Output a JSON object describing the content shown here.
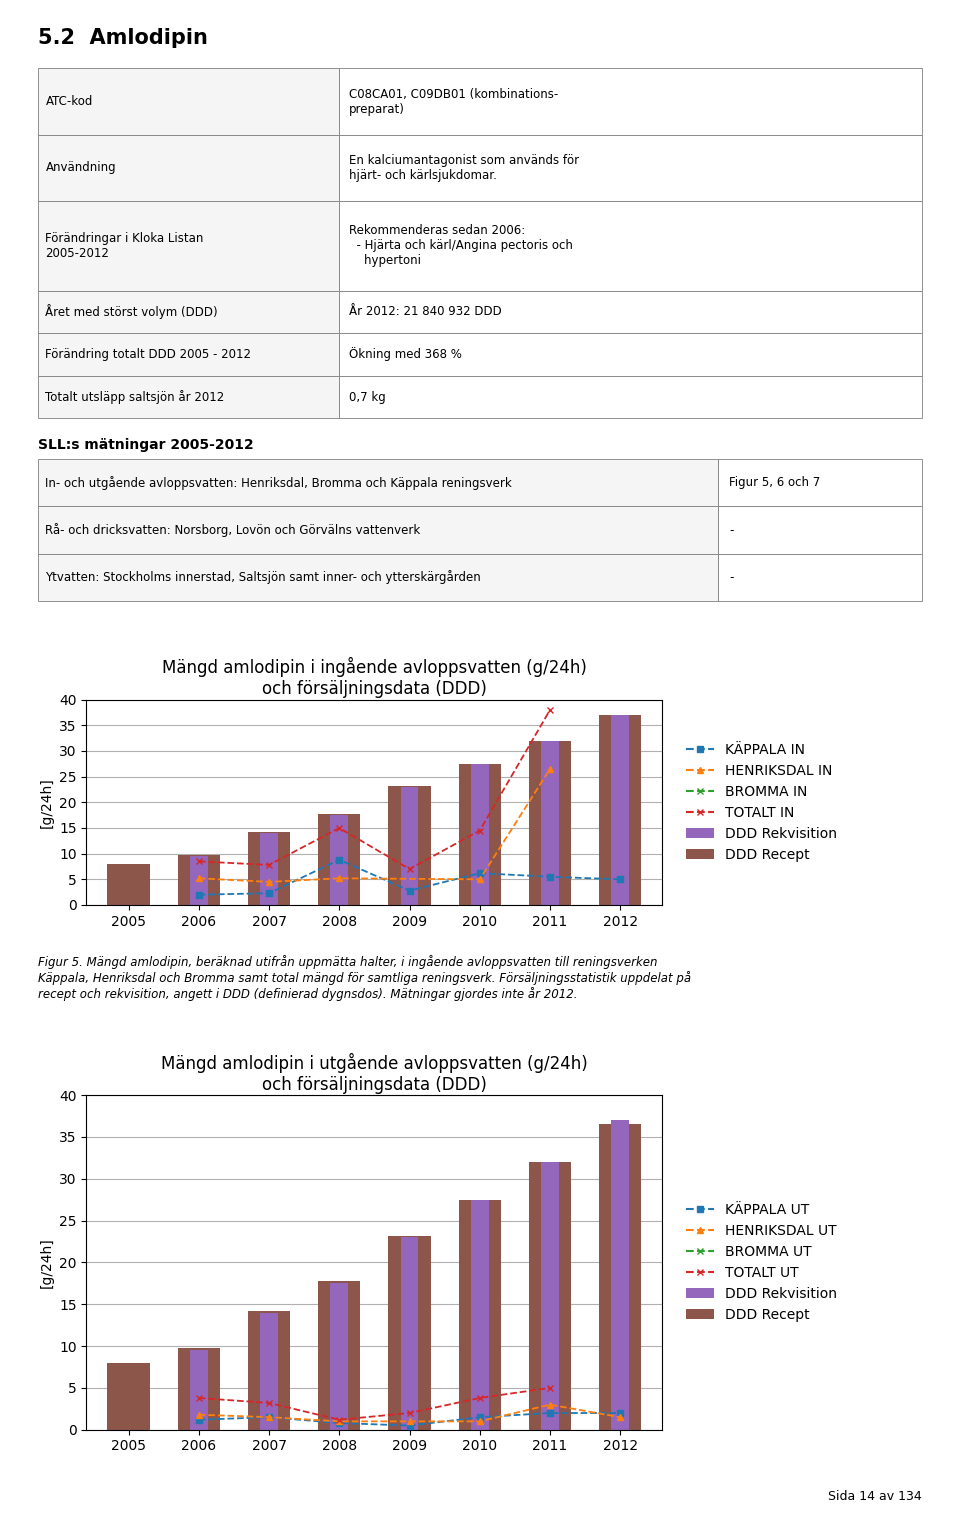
{
  "title": "5.2  Amlodipin",
  "tables": [
    {
      "rows": [
        [
          "ATC-kod",
          "C08CA01, C09DB01 (kombinations-\npreparat)"
        ],
        [
          "Användning",
          "En kalciumantagonist som används för\nhjärt- och kärlsjukdomar."
        ],
        [
          "Förändringar i Kloka Listan\n2005-2012",
          "Rekommenderas sedan 2006:\n  - Hjärta och kärl/Angina pectoris och\n    hypertoni"
        ],
        [
          "Året med störst volym (DDD)",
          "År 2012: 21 840 932 DDD"
        ],
        [
          "Förändring totalt DDD 2005 - 2012",
          "Ökning med 368 %"
        ],
        [
          "Totalt utsläpp saltsjön år 2012",
          "0,7 kg"
        ]
      ]
    },
    {
      "title": "SLL:s mätningar 2005-2012",
      "rows": [
        [
          "In- och utgående avloppsvatten: Henriksdal, Bromma och Käppala reningsverk",
          "Figur 5, 6 och 7"
        ],
        [
          "Rå- och dricksvatten: Norsborg, Lovön och Görvälns vattenverk",
          "-"
        ],
        [
          "Ytvatten: Stockholms innerstad, Saltsjön samt inner- och ytterskärgården",
          "-"
        ]
      ]
    }
  ],
  "annotations": [
    "Figur 5. Mängd amlodipin, beräknad utifrån uppmätta halter, i ingående avloppsvatten till reningsverken\nKäppala, Henriksdal och Bromma samt total mängd för samtliga reningsverk. Försäljningsstatistik uppdelat på\nrecept och rekvisition, angett i DDD (definierad dygnsdos). Mätningar gjordes inte år 2012.",
    "Sida 14 av 134"
  ],
  "chart_data": [
    {
      "type": "bar",
      "title": "Mängd amlodipin i ingående avloppsvatten (g/24h)\noch försäljningsdata (DDD)",
      "y_label": "[g/24h]",
      "categories": [
        "2005",
        "2006",
        "2007",
        "2008",
        "2009",
        "2010",
        "2011",
        "2012"
      ],
      "ylim": [
        0,
        40
      ],
      "yticks": [
        0,
        5,
        10,
        15,
        20,
        25,
        30,
        35,
        40
      ],
      "grid": true,
      "legend": "right",
      "series": [
        {
          "name": "KÄPPALA IN",
          "type": "line",
          "marker": "square",
          "line_style": "dashed",
          "values": [
            null,
            2.0,
            2.3,
            8.8,
            2.8,
            6.2,
            5.5,
            5.0
          ]
        },
        {
          "name": "HENRIKSDAL IN",
          "type": "line",
          "marker": "triangle",
          "line_style": "dashed",
          "values": [
            null,
            5.2,
            4.5,
            5.2,
            null,
            5.0,
            26.5,
            null
          ]
        },
        {
          "name": "BROMMA IN",
          "type": "line",
          "marker": "x",
          "line_style": "dashed",
          "values": [
            null,
            null,
            null,
            null,
            null,
            null,
            null,
            null
          ]
        },
        {
          "name": "TOTALT IN",
          "type": "line",
          "marker": "x",
          "line_style": "dashed",
          "values": [
            null,
            8.5,
            7.8,
            15.0,
            7.0,
            14.5,
            38.0,
            null
          ]
        },
        {
          "name": "DDD Rekvisition",
          "type": "bar",
          "values": [
            null,
            9.5,
            14.0,
            17.5,
            23.0,
            27.5,
            32.0,
            37.0
          ]
        },
        {
          "name": "DDD Recept",
          "type": "bar",
          "values": [
            8.0,
            9.8,
            14.2,
            17.8,
            23.2,
            27.5,
            32.0,
            37.0
          ]
        }
      ]
    },
    {
      "type": "bar",
      "title": "Mängd amlodipin i utgående avloppsvatten (g/24h)\noch försäljningsdata (DDD)",
      "y_label": "[g/24h]",
      "categories": [
        "2005",
        "2006",
        "2007",
        "2008",
        "2009",
        "2010",
        "2011",
        "2012"
      ],
      "ylim": [
        0,
        40
      ],
      "yticks": [
        0,
        5,
        10,
        15,
        20,
        25,
        30,
        35,
        40
      ],
      "grid": true,
      "legend": "right",
      "series": [
        {
          "name": "KÄPPALA UT",
          "type": "line",
          "marker": "square",
          "line_style": "dashed",
          "values": [
            null,
            1.2,
            1.5,
            0.8,
            0.5,
            1.5,
            2.0,
            2.0
          ]
        },
        {
          "name": "HENRIKSDAL UT",
          "type": "line",
          "marker": "triangle",
          "line_style": "dashed",
          "values": [
            null,
            1.8,
            1.5,
            1.0,
            1.0,
            1.0,
            3.0,
            1.5
          ]
        },
        {
          "name": "BROMMA UT",
          "type": "line",
          "marker": "x",
          "line_style": "dashed",
          "values": [
            null,
            null,
            null,
            null,
            null,
            null,
            null,
            null
          ]
        },
        {
          "name": "TOTALT UT",
          "type": "line",
          "marker": "x",
          "line_style": "dashed",
          "values": [
            null,
            3.8,
            3.2,
            1.2,
            2.0,
            3.8,
            5.0,
            null
          ]
        },
        {
          "name": "DDD Rekvisition",
          "type": "bar",
          "values": [
            null,
            9.5,
            14.0,
            17.5,
            23.0,
            27.5,
            32.0,
            37.0
          ]
        },
        {
          "name": "DDD Recept",
          "type": "bar",
          "values": [
            8.0,
            9.8,
            14.2,
            17.8,
            23.2,
            27.5,
            32.0,
            36.5
          ]
        }
      ]
    }
  ]
}
